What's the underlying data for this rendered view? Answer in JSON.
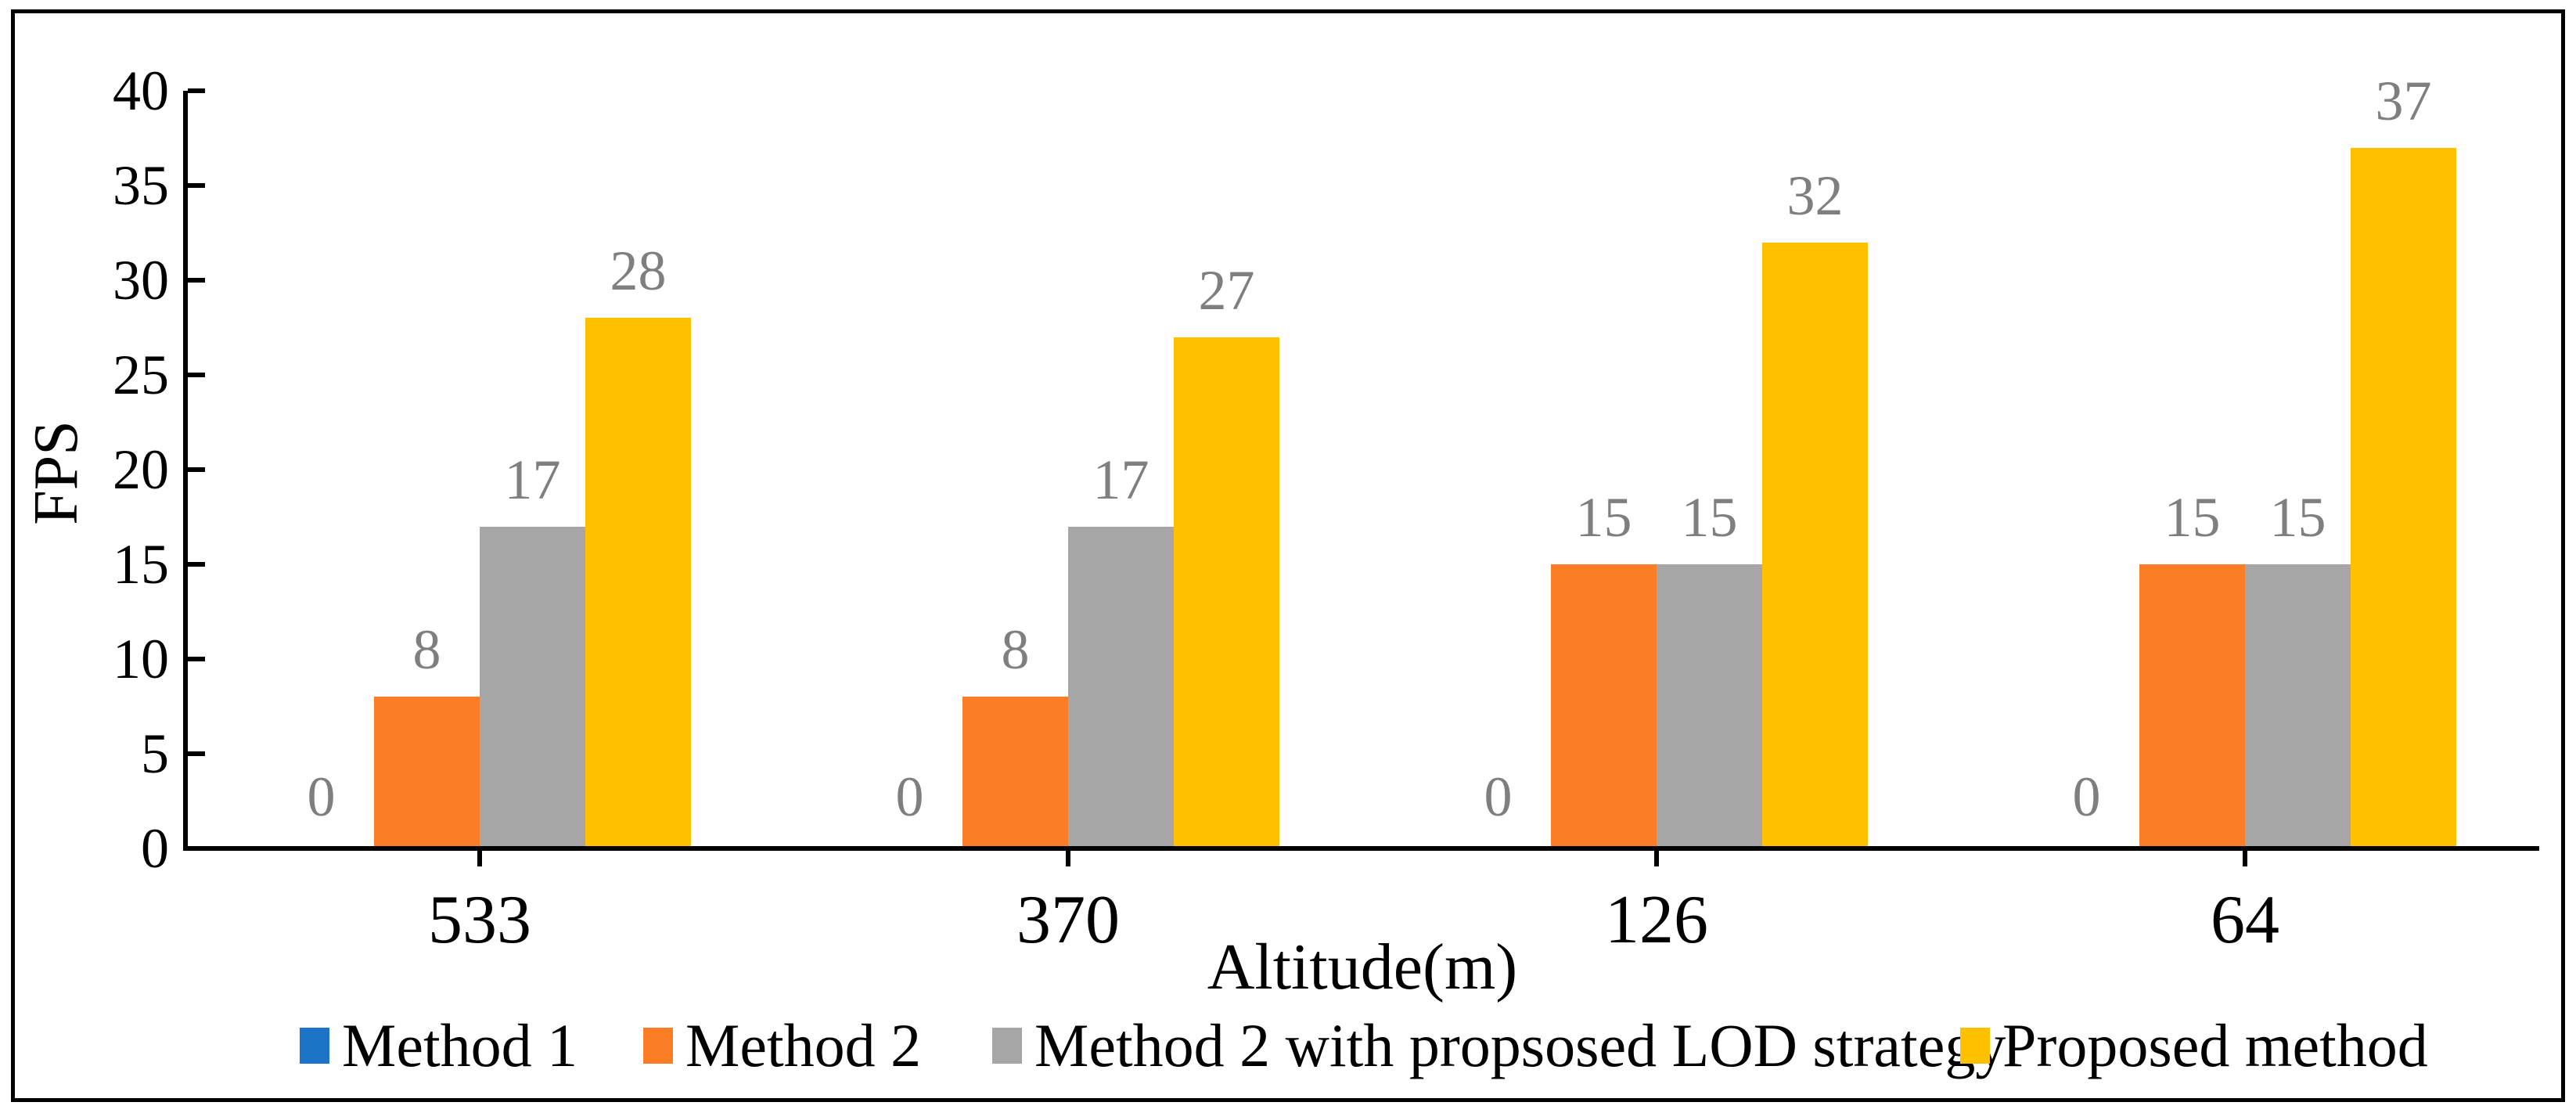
{
  "figure": {
    "background": "#FFFFFF",
    "frame_color": "#000000"
  },
  "chart_data": {
    "type": "bar",
    "title": "",
    "xlabel": "Altitude(m)",
    "ylabel": "FPS",
    "categories": [
      "533",
      "370",
      "126",
      "64"
    ],
    "series": [
      {
        "name": "Method 1",
        "color": "#1B74C5",
        "values": [
          0,
          0,
          0,
          0
        ]
      },
      {
        "name": "Method 2",
        "color": "#FB7D26",
        "values": [
          8,
          8,
          15,
          15
        ]
      },
      {
        "name": "Method 2 with propsosed LOD strategy",
        "color": "#A6A6A6",
        "values": [
          17,
          17,
          15,
          15
        ]
      },
      {
        "name": "Proposed method",
        "color": "#FFC000",
        "values": [
          28,
          27,
          32,
          37
        ]
      }
    ],
    "ylim": [
      0,
      40
    ],
    "yticks": [
      0,
      5,
      10,
      15,
      20,
      25,
      30,
      35,
      40
    ],
    "grid": false,
    "legend_position": "bottom",
    "data_labels": {
      "show": true,
      "color": "#7F7F7F"
    },
    "axis_color": "#000000"
  }
}
